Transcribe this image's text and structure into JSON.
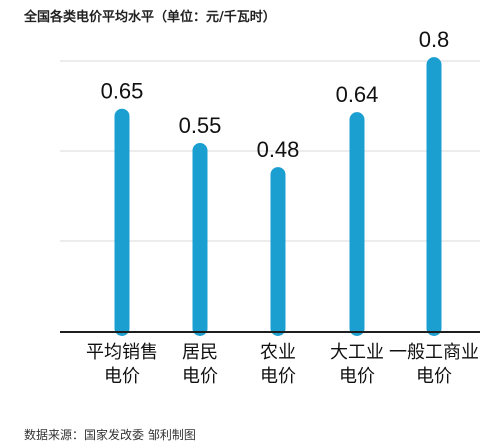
{
  "header": {
    "title": "全国各类电价平均水平（单位：元/千瓦时）"
  },
  "footer": {
    "source": "数据来源：国家发改委  邹利制图"
  },
  "colors": {
    "bar": "#1a9fd0",
    "grid": "#d9d9d9",
    "axis": "#1f1f1f",
    "text": "#111111"
  },
  "chart_data": {
    "type": "bar",
    "title": "全国各类电价平均水平（单位：元/千瓦时）",
    "xlabel": "",
    "ylabel": "",
    "categories": [
      [
        "平均销售",
        "电价"
      ],
      [
        "居民",
        "电价"
      ],
      [
        "农业",
        "电价"
      ],
      [
        "大工业",
        "电价"
      ],
      [
        "一般工商业",
        "电价"
      ]
    ],
    "values": [
      0.65,
      0.55,
      0.48,
      0.64,
      0.8
    ],
    "value_labels": [
      "0.65",
      "0.55",
      "0.48",
      "0.64",
      "0.8"
    ],
    "ylim": [
      0,
      0.85
    ],
    "grid": true,
    "legend": "none"
  }
}
